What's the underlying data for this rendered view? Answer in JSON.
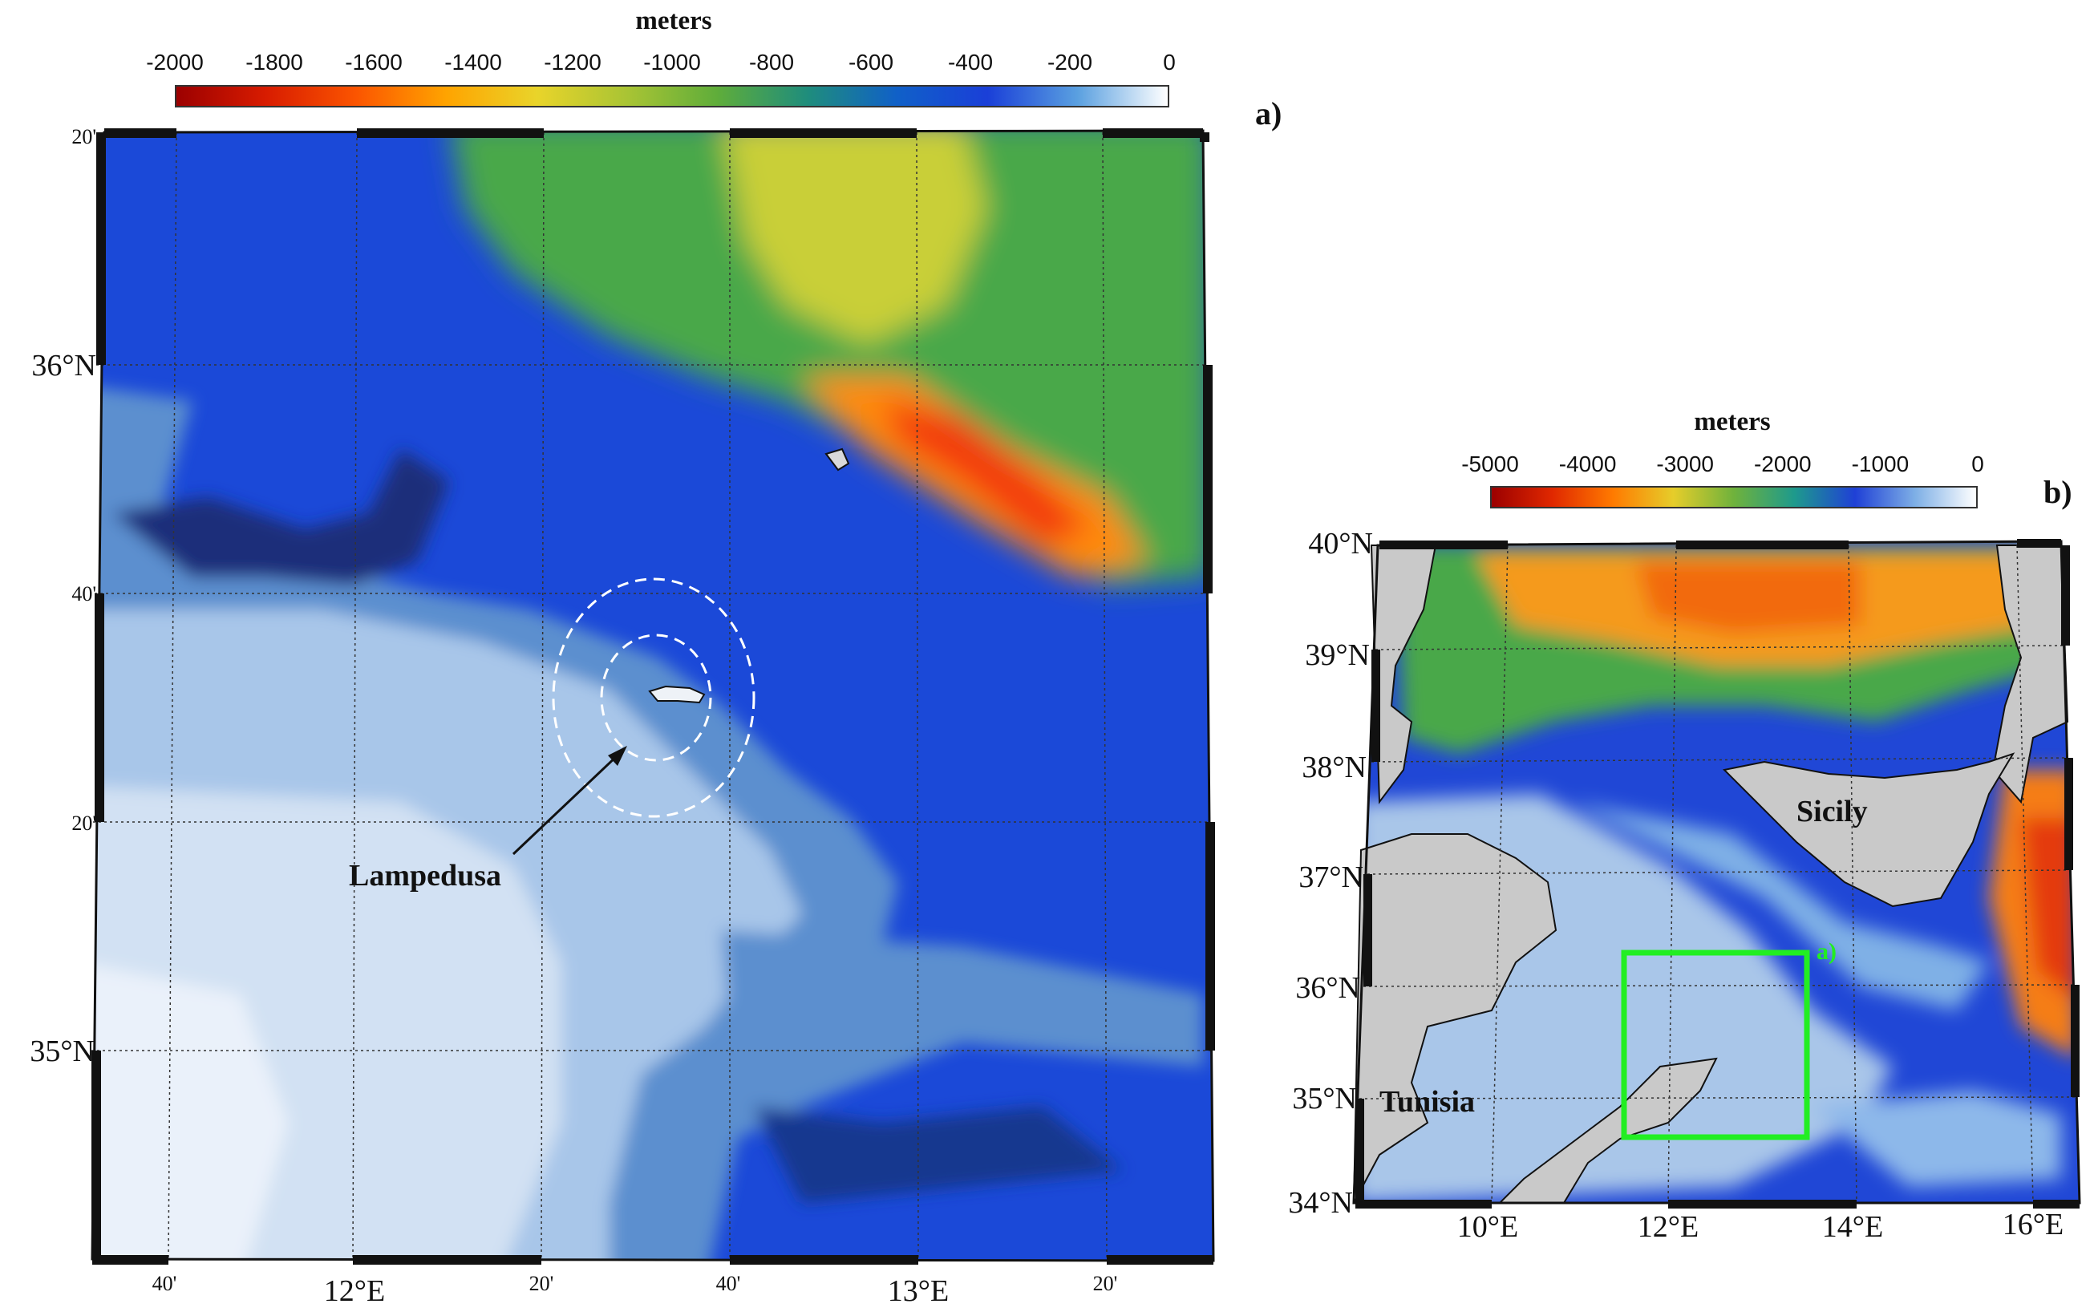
{
  "panel_a": {
    "label": "a)",
    "colorbar": {
      "unit": "meters",
      "ticks": [
        "-2000",
        "-1800",
        "-1600",
        "-1400",
        "-1200",
        "-1000",
        "-800",
        "-600",
        "-400",
        "-200",
        "0"
      ],
      "colors": [
        "#9c0000",
        "#d81c00",
        "#fb5500",
        "#ffa400",
        "#e9d42a",
        "#a9c434",
        "#5fad3a",
        "#1f8d7c",
        "#1060c8",
        "#1a3fd8",
        "#5aa0e0",
        "#ffffff"
      ]
    },
    "lat_labels": [
      "20'",
      "36°N",
      "40'",
      "20'",
      "35°N"
    ],
    "lon_labels": [
      "40'",
      "12°E",
      "20'",
      "40'",
      "13°E",
      "20'"
    ],
    "annotation": "Lampedusa"
  },
  "panel_b": {
    "label": "b)",
    "colorbar": {
      "unit": "meters",
      "ticks": [
        "-5000",
        "-4000",
        "-3000",
        "-2000",
        "-1000",
        "0"
      ],
      "colors": [
        "#9c0000",
        "#e02800",
        "#ff7a00",
        "#e6cd2a",
        "#6fb23c",
        "#1e9a8c",
        "#1f40d6",
        "#7fb0e6",
        "#ffffff"
      ]
    },
    "lat_labels": [
      "40°N",
      "39°N",
      "38°N",
      "37°N",
      "36°N",
      "35°N",
      "34°N"
    ],
    "lon_labels": [
      "10°E",
      "12°E",
      "14°E",
      "16°E"
    ],
    "places": [
      "Sicily",
      "Tunisia"
    ],
    "inset_label": "a)",
    "inset_color": "#22ee22"
  }
}
